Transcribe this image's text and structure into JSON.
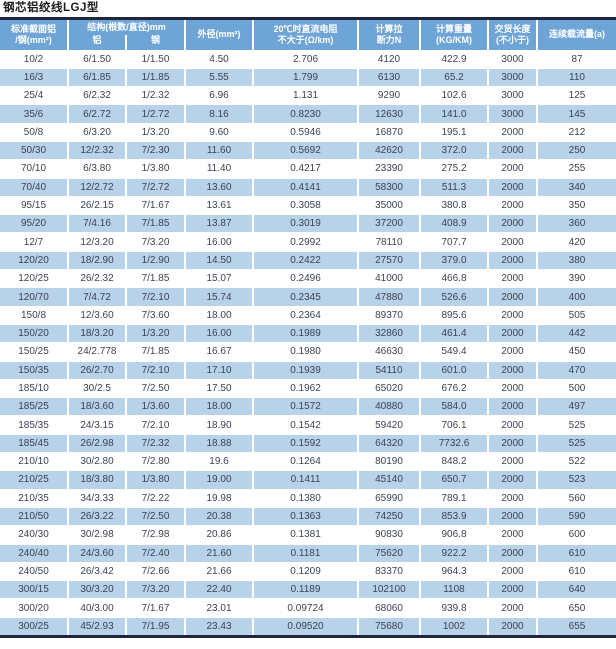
{
  "title": "钢芯铝绞线LGJ型",
  "colors": {
    "header_blue": "#6fa5d6",
    "row_stripe_blue": "#b8d2ea",
    "rule_dark": "#20263c",
    "header_text": "#ffffff",
    "body_text": "#3c4350"
  },
  "table": {
    "headers": {
      "spec": "标准截面铝\n/钢(mm²)",
      "structure": "结构(根数/直径)mm",
      "structure_al": "铝",
      "structure_steel": "钢",
      "outer_diameter": "外径(mm²)",
      "dc_resistance": "20℃时直流电阻\n不大于(Ω/km)",
      "breaking_force": "计算拉\n断力N",
      "weight": "计算重量\n(KG/KM)",
      "delivery_length": "交货长度\n(不小于)",
      "ampacity": "连续载流量(a)"
    },
    "rows": [
      [
        "10/2",
        "6/1.50",
        "1/1.50",
        "4.50",
        "2.706",
        "4120",
        "422.9",
        "3000",
        "87"
      ],
      [
        "16/3",
        "6/1.85",
        "1/1.85",
        "5.55",
        "1.799",
        "6130",
        "65.2",
        "3000",
        "110"
      ],
      [
        "25/4",
        "6/2.32",
        "1/2.32",
        "6.96",
        "1.131",
        "9290",
        "102.6",
        "3000",
        "125"
      ],
      [
        "35/6",
        "6/2.72",
        "1/2.72",
        "8.16",
        "0.8230",
        "12630",
        "141.0",
        "3000",
        "145"
      ],
      [
        "50/8",
        "6/3.20",
        "1/3.20",
        "9.60",
        "0.5946",
        "16870",
        "195.1",
        "2000",
        "212"
      ],
      [
        "50/30",
        "12/2.32",
        "7/2.30",
        "11.60",
        "0.5692",
        "42620",
        "372.0",
        "2000",
        "250"
      ],
      [
        "70/10",
        "6/3.80",
        "1/3.80",
        "11.40",
        "0.4217",
        "23390",
        "275.2",
        "2000",
        "255"
      ],
      [
        "70/40",
        "12/2.72",
        "7/2.72",
        "13.60",
        "0.4141",
        "58300",
        "511.3",
        "2000",
        "340"
      ],
      [
        "95/15",
        "26/2.15",
        "7/1.67",
        "13.61",
        "0.3058",
        "35000",
        "380.8",
        "2000",
        "350"
      ],
      [
        "95/20",
        "7/4.16",
        "7/1.85",
        "13.87",
        "0.3019",
        "37200",
        "408.9",
        "2000",
        "360"
      ],
      [
        "12/7",
        "12/3.20",
        "7/3.20",
        "16.00",
        "0.2992",
        "78110",
        "707.7",
        "2000",
        "420"
      ],
      [
        "120/20",
        "18/2.90",
        "1/2.90",
        "14.50",
        "0.2422",
        "27570",
        "379.0",
        "2000",
        "380"
      ],
      [
        "120/25",
        "26/2.32",
        "7/1.85",
        "15.07",
        "0.2496",
        "41000",
        "466.8",
        "2000",
        "390"
      ],
      [
        "120/70",
        "7/4.72",
        "7/2.10",
        "15.74",
        "0.2345",
        "47880",
        "526.6",
        "2000",
        "400"
      ],
      [
        "150/8",
        "12/3.60",
        "7/3.60",
        "18.00",
        "0.2364",
        "89370",
        "895.6",
        "2000",
        "505"
      ],
      [
        "150/20",
        "18/3.20",
        "1/3.20",
        "16.00",
        "0.1989",
        "32860",
        "461.4",
        "2000",
        "442"
      ],
      [
        "150/25",
        "24/2.778",
        "7/1.85",
        "16.67",
        "0.1980",
        "46630",
        "549.4",
        "2000",
        "450"
      ],
      [
        "150/35",
        "26/2.70",
        "7/2.10",
        "17.10",
        "0.1939",
        "54110",
        "601.0",
        "2000",
        "470"
      ],
      [
        "185/10",
        "30/2.5",
        "7/2.50",
        "17.50",
        "0.1962",
        "65020",
        "676.2",
        "2000",
        "500"
      ],
      [
        "185/25",
        "18/3.60",
        "1/3.60",
        "18.00",
        "0.1572",
        "40880",
        "584.0",
        "2000",
        "497"
      ],
      [
        "185/35",
        "24/3.15",
        "7/2.10",
        "18.90",
        "0.1542",
        "59420",
        "706.1",
        "2000",
        "525"
      ],
      [
        "185/45",
        "26/2.98",
        "7/2.32",
        "18.88",
        "0.1592",
        "64320",
        "7732.6",
        "2000",
        "525"
      ],
      [
        "210/10",
        "30/2.80",
        "7/2.80",
        "19.6",
        "0.1264",
        "80190",
        "848.2",
        "2000",
        "522"
      ],
      [
        "210/25",
        "18/3.80",
        "1/3.80",
        "19.00",
        "0.1411",
        "45140",
        "650.7",
        "2000",
        "523"
      ],
      [
        "210/35",
        "34/3.33",
        "7/2.22",
        "19.98",
        "0.1380",
        "65990",
        "789.1",
        "2000",
        "560"
      ],
      [
        "210/50",
        "26/3.22",
        "7/2.50",
        "20.38",
        "0.1363",
        "74250",
        "853.9",
        "2000",
        "590"
      ],
      [
        "240/30",
        "30/2.98",
        "7/2.98",
        "20.86",
        "0.1381",
        "90830",
        "906.8",
        "2000",
        "600"
      ],
      [
        "240/40",
        "24/3.60",
        "7/2.40",
        "21.60",
        "0.1181",
        "75620",
        "922.2",
        "2000",
        "610"
      ],
      [
        "240/50",
        "26/3.42",
        "7/2.66",
        "21.66",
        "0.1209",
        "83370",
        "964.3",
        "2000",
        "610"
      ],
      [
        "300/15",
        "30/3.20",
        "7/3.20",
        "22.40",
        "0.1189",
        "102100",
        "1108",
        "2000",
        "640"
      ],
      [
        "300/20",
        "40/3.00",
        "7/1.67",
        "23.01",
        "0.09724",
        "68060",
        "939.8",
        "2000",
        "650"
      ],
      [
        "300/25",
        "45/2.93",
        "7/1.95",
        "23.43",
        "0.09520",
        "75680",
        "1002",
        "2000",
        "655"
      ]
    ]
  }
}
